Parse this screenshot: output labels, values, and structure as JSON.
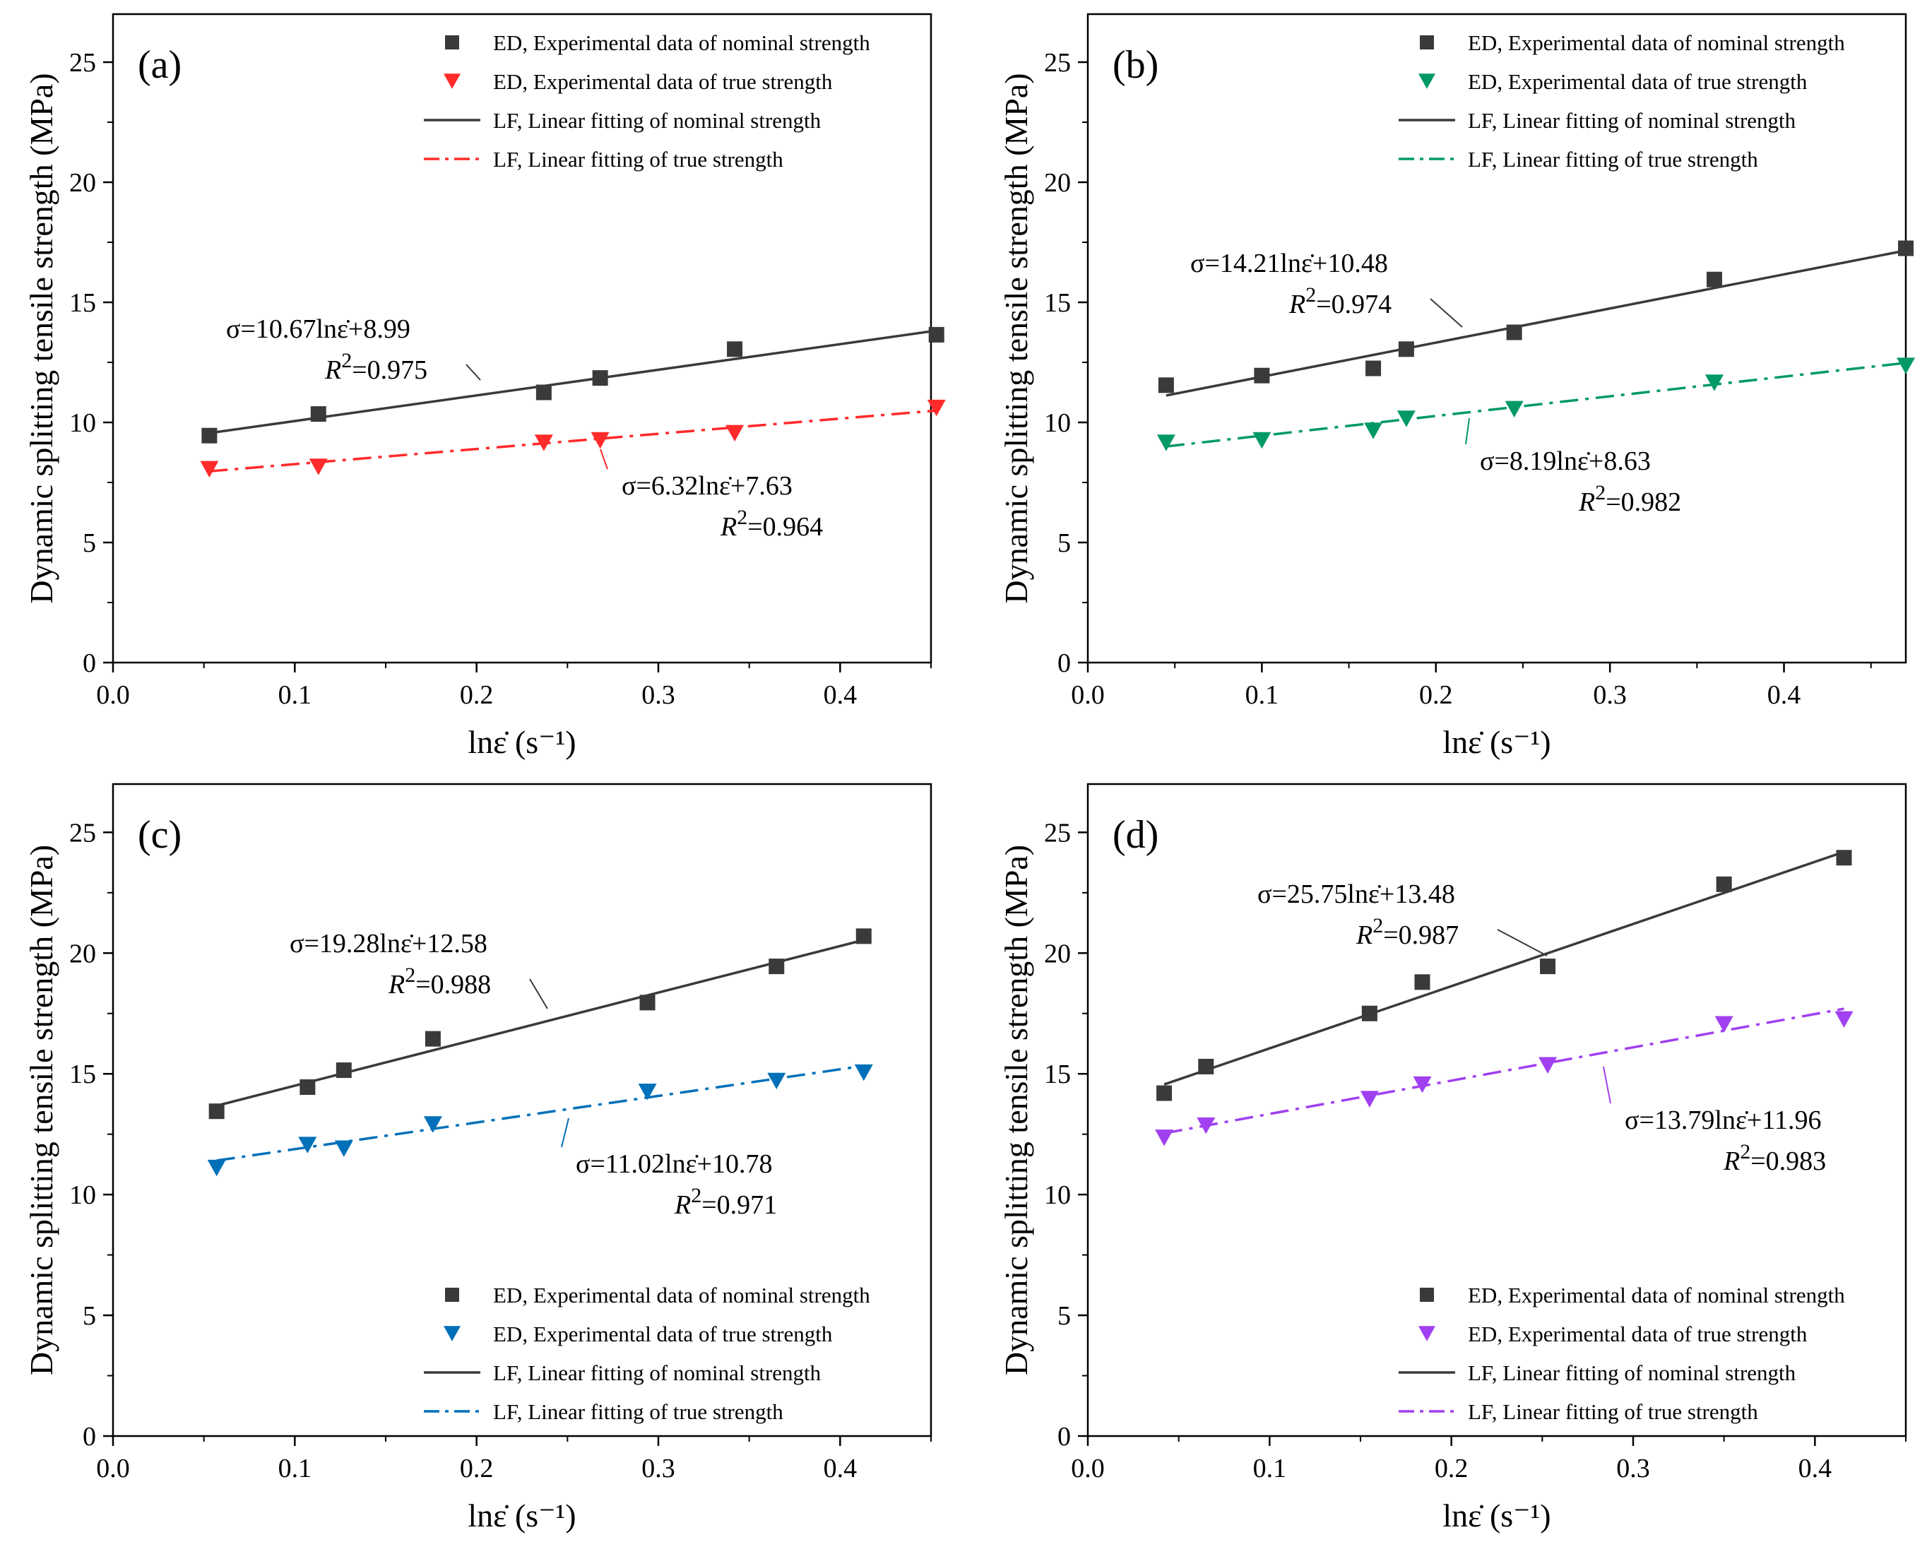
{
  "chart_data": [
    {
      "type": "scatter",
      "panel_label": "(a)",
      "xlabel": "lnε̇ (s⁻¹)",
      "ylabel": "Dynamic splitting tensile strength (MPa)",
      "xlim": [
        0.0,
        0.45
      ],
      "ylim": [
        0,
        27
      ],
      "xticks": [
        0.0,
        0.1,
        0.2,
        0.3,
        0.4
      ],
      "yticks": [
        0,
        5,
        10,
        15,
        20,
        25
      ],
      "legend_position": "top-right",
      "true_color": "#ff2a2a",
      "true_marker": "triangle-down",
      "series": [
        {
          "name": "ED, Experimental data of nominal strength",
          "kind": "points",
          "x": [
            0.053,
            0.113,
            0.237,
            0.268,
            0.342,
            0.453
          ],
          "y": [
            9.45,
            10.35,
            11.25,
            11.85,
            13.05,
            13.65
          ]
        },
        {
          "name": "ED, Experimental data of true strength",
          "kind": "points",
          "x": [
            0.053,
            0.113,
            0.237,
            0.268,
            0.342,
            0.453
          ],
          "y": [
            8.05,
            8.15,
            9.15,
            9.25,
            9.55,
            10.6
          ]
        },
        {
          "name": "LF, Linear fitting of nominal strength",
          "kind": "fit",
          "slope": 10.67,
          "intercept": 8.99,
          "x_range": [
            0.053,
            0.453
          ]
        },
        {
          "name": "LF, Linear fitting of true strength",
          "kind": "fit",
          "slope": 6.32,
          "intercept": 7.63,
          "x_range": [
            0.053,
            0.453
          ]
        }
      ],
      "annotations": [
        {
          "equation": "σ=10.67lnε̇+8.99",
          "r2_value": "=0.975"
        },
        {
          "equation": "σ=6.32lnε̇+7.63",
          "r2_value": "=0.964"
        }
      ]
    },
    {
      "type": "scatter",
      "panel_label": "(b)",
      "xlabel": "lnε̇ (s⁻¹)",
      "ylabel": "Dynamic splitting tensile strength (MPa)",
      "xlim": [
        0.0,
        0.47
      ],
      "ylim": [
        0,
        27
      ],
      "xticks": [
        0.0,
        0.1,
        0.2,
        0.3,
        0.4
      ],
      "yticks": [
        0,
        5,
        10,
        15,
        20,
        25
      ],
      "legend_position": "top-right",
      "true_color": "#009966",
      "true_marker": "triangle-down",
      "series": [
        {
          "name": "ED, Experimental data of nominal strength",
          "kind": "points",
          "x": [
            0.045,
            0.1,
            0.164,
            0.183,
            0.245,
            0.36,
            0.47
          ],
          "y": [
            11.55,
            11.95,
            12.25,
            13.05,
            13.75,
            15.95,
            17.25
          ]
        },
        {
          "name": "ED, Experimental data of true strength",
          "kind": "points",
          "x": [
            0.045,
            0.1,
            0.164,
            0.183,
            0.245,
            0.36,
            0.47
          ],
          "y": [
            9.15,
            9.25,
            9.65,
            10.15,
            10.55,
            11.65,
            12.35
          ]
        },
        {
          "name": "LF, Linear fitting of nominal strength",
          "kind": "fit",
          "slope": 14.21,
          "intercept": 10.48,
          "x_range": [
            0.045,
            0.47
          ]
        },
        {
          "name": "LF, Linear fitting of true strength",
          "kind": "fit",
          "slope": 8.19,
          "intercept": 8.63,
          "x_range": [
            0.045,
            0.47
          ]
        }
      ],
      "annotations": [
        {
          "equation": "σ=14.21lnε̇+10.48",
          "r2_value": "=0.974"
        },
        {
          "equation": "σ=8.19lnε̇+8.63",
          "r2_value": "=0.982"
        }
      ]
    },
    {
      "type": "scatter",
      "panel_label": "(c)",
      "xlabel": "lnε̇ (s⁻¹)",
      "ylabel": "Dynamic splitting tensile strength (MPa)",
      "xlim": [
        0.0,
        0.45
      ],
      "ylim": [
        0,
        27
      ],
      "xticks": [
        0.0,
        0.1,
        0.2,
        0.3,
        0.4
      ],
      "yticks": [
        0,
        5,
        10,
        15,
        20,
        25
      ],
      "legend_position": "bottom-right",
      "true_color": "#0070b8",
      "true_marker": "triangle-down",
      "series": [
        {
          "name": "ED, Experimental data of nominal strength",
          "kind": "points",
          "x": [
            0.057,
            0.107,
            0.127,
            0.176,
            0.294,
            0.365,
            0.413
          ],
          "y": [
            13.45,
            14.45,
            15.15,
            16.45,
            17.95,
            19.45,
            20.7
          ]
        },
        {
          "name": "ED, Experimental data of true strength",
          "kind": "points",
          "x": [
            0.057,
            0.107,
            0.127,
            0.176,
            0.294,
            0.365,
            0.413
          ],
          "y": [
            11.1,
            12.05,
            11.9,
            12.9,
            14.25,
            14.7,
            15.05
          ]
        },
        {
          "name": "LF, Linear fitting of nominal strength",
          "kind": "fit",
          "slope": 19.28,
          "intercept": 12.58,
          "x_range": [
            0.057,
            0.413
          ]
        },
        {
          "name": "LF, Linear fitting of true strength",
          "kind": "fit",
          "slope": 11.02,
          "intercept": 10.78,
          "x_range": [
            0.057,
            0.413
          ]
        }
      ],
      "annotations": [
        {
          "equation": "σ=19.28lnε̇+12.58",
          "r2_value": "=0.988"
        },
        {
          "equation": "σ=11.02lnε̇+10.78",
          "r2_value": "=0.971"
        }
      ]
    },
    {
      "type": "scatter",
      "panel_label": "(d)",
      "xlabel": "lnε̇ (s⁻¹)",
      "ylabel": "Dynamic splitting tensile strength (MPa)",
      "xlim": [
        0.0,
        0.45
      ],
      "ylim": [
        0,
        27
      ],
      "xticks": [
        0.0,
        0.1,
        0.2,
        0.3,
        0.4
      ],
      "yticks": [
        0,
        5,
        10,
        15,
        20,
        25
      ],
      "legend_position": "bottom-right",
      "true_color": "#a040f0",
      "true_marker": "triangle-down",
      "series": [
        {
          "name": "ED, Experimental data of nominal strength",
          "kind": "points",
          "x": [
            0.042,
            0.065,
            0.155,
            0.184,
            0.253,
            0.35,
            0.416
          ],
          "y": [
            14.2,
            15.3,
            17.5,
            18.8,
            19.45,
            22.85,
            23.95
          ]
        },
        {
          "name": "ED, Experimental data of true strength",
          "kind": "points",
          "x": [
            0.042,
            0.065,
            0.155,
            0.184,
            0.253,
            0.35,
            0.416
          ],
          "y": [
            12.35,
            12.85,
            13.95,
            14.55,
            15.35,
            17.05,
            17.25
          ]
        },
        {
          "name": "LF, Linear fitting of nominal strength",
          "kind": "fit",
          "slope": 25.75,
          "intercept": 13.48,
          "x_range": [
            0.042,
            0.416
          ]
        },
        {
          "name": "LF, Linear fitting of true strength",
          "kind": "fit",
          "slope": 13.79,
          "intercept": 11.96,
          "x_range": [
            0.042,
            0.416
          ]
        }
      ],
      "annotations": [
        {
          "equation": "σ=25.75lnε̇+13.48",
          "r2_value": "=0.987"
        },
        {
          "equation": "σ=13.79lnε̇+11.96",
          "r2_value": "=0.983"
        }
      ]
    }
  ]
}
